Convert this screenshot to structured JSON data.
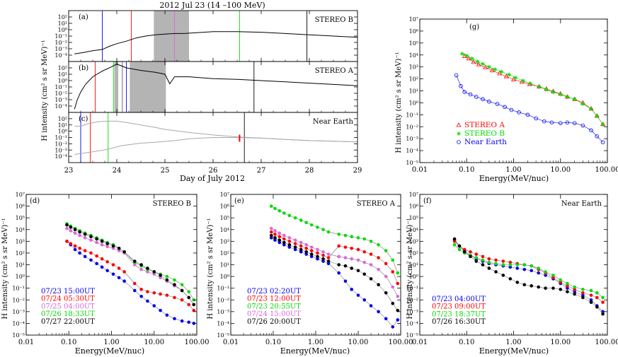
{
  "figure": {
    "title": "2012 Jul 23 (14 –100 MeV)"
  },
  "colors": {
    "black": "#000000",
    "red": "#ff0000",
    "green": "#00dd00",
    "blue": "#0000ee",
    "violet": "#dd66dd",
    "gray": "#a8a8a8",
    "shade": "#b4b4b4"
  },
  "time_axis": {
    "xlabel": "Day of July 2012",
    "ylabel": "H intensity (cm² s sr MeV)⁻¹",
    "xlim": [
      23,
      29
    ],
    "xticks": [
      "23",
      "24",
      "25",
      "26",
      "27",
      "28",
      "29"
    ],
    "ylim": [
      -5,
      3
    ],
    "yticks": [
      "10⁻⁴",
      "10⁻³",
      "10⁻²",
      "10⁻¹",
      "10⁰",
      "10¹",
      "10²"
    ]
  },
  "log_axis": {
    "xlabel": "Energy(MeV/nuc)",
    "ylabel": "H intensity (cm² s sr MeV)⁻¹",
    "xlim": [
      0.01,
      100
    ],
    "xticks": [
      "0.01",
      "0.10",
      "1.00",
      "10.00",
      "100.00"
    ],
    "ylim": [
      -5,
      7
    ],
    "yticks": [
      "10⁻⁵",
      "10⁻⁴",
      "10⁻³",
      "10⁻²",
      "10⁻¹",
      "10⁰",
      "10¹",
      "10²",
      "10³",
      "10⁴",
      "10⁵",
      "10⁶",
      "10⁷"
    ]
  },
  "chart_data": [
    {
      "id": "a",
      "type": "line",
      "label": "(a)",
      "name": "STEREO B",
      "shaded_days": [
        [
          24.77,
          25.5
        ]
      ],
      "vlines": [
        {
          "x": 23.7,
          "color": "blue"
        },
        {
          "x": 24.3,
          "color": "red"
        },
        {
          "x": 25.2,
          "color": "violet"
        },
        {
          "x": 26.55,
          "color": "green"
        },
        {
          "x": 27.95,
          "color": "black"
        }
      ],
      "series": [
        {
          "name": "STEREO B",
          "x": [
            23.12,
            23.3,
            23.5,
            23.7,
            23.85,
            24.0,
            24.2,
            24.4,
            24.6,
            24.8,
            25.0,
            25.2,
            25.4,
            25.6,
            26.0,
            26.5,
            27.0,
            27.5,
            28.0,
            28.5,
            29.0
          ],
          "log10_values": [
            -3.8,
            -3.6,
            -3.3,
            -3.1,
            -2.6,
            -2.2,
            -1.8,
            -1.3,
            -1.0,
            -0.8,
            -0.7,
            -0.6,
            -0.6,
            -0.5,
            -0.3,
            -0.3,
            -0.4,
            -0.6,
            -0.8,
            -1.0,
            -1.2
          ]
        }
      ]
    },
    {
      "id": "b",
      "type": "line",
      "label": "(b)",
      "name": "STEREO A",
      "shaded_days": [
        [
          23.95,
          24.03
        ],
        [
          24.1,
          24.13
        ],
        [
          24.27,
          25.02
        ]
      ],
      "vlines": [
        {
          "x": 23.55,
          "color": "red"
        },
        {
          "x": 23.93,
          "color": "green"
        },
        {
          "x": 24.2,
          "color": "blue"
        },
        {
          "x": 26.85,
          "color": "black"
        }
      ],
      "series": [
        {
          "name": "STEREO A",
          "x": [
            23.12,
            23.18,
            23.25,
            23.35,
            23.5,
            23.7,
            23.9,
            24.0,
            24.2,
            24.5,
            24.8,
            25.0,
            25.1,
            25.2,
            25.5,
            26.0,
            26.5,
            27.0,
            27.5,
            28.0,
            28.5,
            29.0
          ],
          "log10_values": [
            -4.5,
            -3.0,
            -1.8,
            -0.6,
            0.6,
            1.5,
            2.2,
            2.6,
            2.0,
            1.6,
            1.3,
            1.0,
            -0.5,
            0.6,
            0.6,
            0.3,
            0.2,
            0.0,
            -0.2,
            -0.4,
            -0.6,
            -0.8
          ]
        }
      ]
    },
    {
      "id": "c",
      "type": "line",
      "label": "(c)",
      "name": "Near Earth",
      "vlines": [
        {
          "x": 23.25,
          "color": "blue"
        },
        {
          "x": 23.45,
          "color": "red"
        },
        {
          "x": 23.82,
          "color": "green"
        },
        {
          "x": 26.65,
          "color": "black"
        }
      ],
      "markers": [
        {
          "x": 26.55,
          "color": "red"
        }
      ],
      "series": [
        {
          "name": "upper",
          "x": [
            23.12,
            23.25,
            23.4,
            23.6,
            23.8,
            24.0,
            24.2,
            24.5,
            24.8,
            25.0,
            25.5,
            26.0,
            26.5,
            27.0,
            27.5,
            28.0,
            28.5,
            29.0
          ],
          "log10_values": [
            0.8,
            0.8,
            1.2,
            1.5,
            1.6,
            1.6,
            1.4,
            1.0,
            0.6,
            0.3,
            -0.2,
            -0.6,
            -0.9,
            -1.1,
            -1.3,
            -1.5,
            -1.6,
            -1.7
          ]
        },
        {
          "name": "lower",
          "x": [
            23.12,
            23.4,
            23.8,
            24.1,
            24.5,
            24.9,
            25.2,
            25.5,
            26.0,
            26.5,
            27.0,
            27.5,
            28.0,
            28.5,
            29.0
          ],
          "log10_values": [
            -3.7,
            -3.4,
            -2.9,
            -2.3,
            -1.9,
            -1.7,
            -1.5,
            -1.2,
            -1.0,
            -1.0,
            -1.1,
            -1.3,
            -1.5,
            -1.6,
            -1.7
          ]
        }
      ]
    },
    {
      "id": "g",
      "type": "scatter",
      "label": "(g)",
      "series": [
        {
          "name": "STEREO A",
          "color": "red",
          "marker": "triangle",
          "x": [
            0.09,
            0.11,
            0.14,
            0.18,
            0.25,
            0.35,
            0.5,
            0.7,
            1.0,
            1.5,
            2.2,
            3.5,
            5,
            7,
            10,
            14,
            20,
            30,
            45,
            60,
            80
          ],
          "log10_values": [
            3.9,
            3.7,
            3.4,
            3.2,
            2.95,
            2.7,
            2.45,
            2.2,
            1.95,
            1.75,
            1.55,
            1.35,
            1.15,
            0.95,
            0.75,
            0.5,
            0.3,
            0.0,
            -0.5,
            -1.1,
            -1.8
          ]
        },
        {
          "name": "STEREO B",
          "color": "green",
          "marker": "star",
          "x": [
            0.08,
            0.1,
            0.13,
            0.17,
            0.22,
            0.3,
            0.4,
            0.55,
            0.8,
            1.1,
            1.6,
            2.3,
            3.5,
            5,
            7,
            10,
            14,
            20,
            30,
            45,
            60,
            80
          ],
          "log10_values": [
            4.1,
            3.95,
            3.7,
            3.45,
            3.25,
            3.0,
            2.8,
            2.6,
            2.35,
            2.1,
            1.85,
            1.6,
            1.35,
            1.1,
            0.9,
            0.7,
            0.5,
            0.3,
            -0.1,
            -0.5,
            -1.1,
            -1.8
          ]
        },
        {
          "name": "Near Earth",
          "color": "blue",
          "marker": "circle",
          "x": [
            0.06,
            0.075,
            0.09,
            0.12,
            0.16,
            0.22,
            0.3,
            0.45,
            0.65,
            0.9,
            1.3,
            2,
            3,
            4.5,
            6.5,
            10,
            14,
            20,
            30,
            45,
            60,
            80
          ],
          "log10_values": [
            2.3,
            1.4,
            0.9,
            0.7,
            0.5,
            0.3,
            0.1,
            -0.1,
            -0.35,
            -0.6,
            -0.8,
            -1.0,
            -1.3,
            -1.55,
            -1.65,
            -1.7,
            -1.65,
            -1.7,
            -1.9,
            -2.3,
            -2.8,
            -3.3
          ]
        }
      ]
    },
    {
      "id": "d",
      "type": "scatter",
      "label": "(d)",
      "name": "STEREO B",
      "x": [
        0.09,
        0.11,
        0.14,
        0.18,
        0.24,
        0.33,
        0.45,
        0.6,
        0.8,
        1.1,
        1.5,
        2.0,
        3.5,
        5,
        7,
        10,
        14,
        20,
        30,
        45,
        65,
        85
      ],
      "series": [
        {
          "name": "07/23  15:00UT",
          "color": "blue",
          "log10_values": [
            3.0,
            2.7,
            2.3,
            2.0,
            1.7,
            1.4,
            1.1,
            0.8,
            0.5,
            0.2,
            -0.1,
            -0.4,
            -1.2,
            -1.7,
            -2.1,
            -2.5,
            -2.9,
            -3.3,
            -3.6,
            -3.8,
            -3.9,
            -4.0
          ]
        },
        {
          "name": "07/24  05:30UT",
          "color": "red",
          "log10_values": [
            3.0,
            2.8,
            2.6,
            2.4,
            2.2,
            2.0,
            1.75,
            1.5,
            1.25,
            1.0,
            0.7,
            0.4,
            -0.6,
            -1.1,
            -1.3,
            -1.4,
            -1.5,
            -1.6,
            -1.8,
            -2.0,
            -2.4,
            -2.9
          ]
        },
        {
          "name": "07/25  04:00UT",
          "color": "violet",
          "log10_values": [
            4.1,
            3.9,
            3.7,
            3.5,
            3.3,
            3.1,
            2.9,
            2.7,
            2.55,
            2.4,
            2.2,
            2.0,
            1.0,
            0.6,
            0.4,
            0.2,
            -0.1,
            -0.4,
            -0.8,
            -1.2,
            -1.8,
            -2.4
          ]
        },
        {
          "name": "07/26  18:33UT",
          "color": "green",
          "log10_values": [
            4.5,
            4.3,
            4.1,
            3.9,
            3.7,
            3.5,
            3.3,
            3.1,
            2.9,
            2.7,
            2.4,
            2.1,
            1.2,
            0.9,
            0.6,
            0.4,
            0.2,
            0.0,
            -0.3,
            -0.7,
            -1.3,
            -2.0
          ]
        },
        {
          "name": "07/27  22:00UT",
          "color": "black",
          "log10_values": [
            4.4,
            4.2,
            4.0,
            3.8,
            3.6,
            3.4,
            3.2,
            3.0,
            2.8,
            2.6,
            2.4,
            2.1,
            1.3,
            1.0,
            0.7,
            0.4,
            0.1,
            -0.3,
            -0.7,
            -1.2,
            -1.8,
            -2.4
          ]
        }
      ]
    },
    {
      "id": "e",
      "type": "scatter",
      "label": "(e)",
      "name": "STEREO A",
      "x": [
        0.09,
        0.11,
        0.14,
        0.18,
        0.24,
        0.33,
        0.45,
        0.6,
        0.8,
        1.1,
        1.5,
        2.0,
        3.5,
        5,
        7,
        10,
        14,
        20,
        30,
        45,
        65,
        85
      ],
      "series": [
        {
          "name": "07/23  02:20UT",
          "color": "blue",
          "log10_values": [
            3.3,
            3.1,
            2.9,
            2.7,
            2.5,
            2.3,
            2.1,
            1.9,
            1.7,
            1.5,
            1.3,
            1.1,
            0.3,
            -0.4,
            -1.1,
            -1.6,
            -2.0,
            -2.5,
            -3.0,
            -3.6,
            -4.3,
            -3.7
          ]
        },
        {
          "name": "07/23  12:00UT",
          "color": "red",
          "log10_values": [
            3.8,
            3.6,
            3.4,
            3.2,
            3.0,
            2.8,
            2.6,
            2.4,
            2.2,
            2.0,
            1.8,
            1.6,
            2.6,
            2.5,
            2.4,
            2.3,
            2.1,
            1.9,
            1.6,
            1.1,
            0.4,
            -0.6
          ]
        },
        {
          "name": "07/23  20:55UT",
          "color": "green",
          "log10_values": [
            6.0,
            5.8,
            5.6,
            5.4,
            5.2,
            5.0,
            4.8,
            4.6,
            4.4,
            4.2,
            4.0,
            3.8,
            3.6,
            3.5,
            3.4,
            3.3,
            3.2,
            3.0,
            2.7,
            2.2,
            1.4,
            0.3
          ]
        },
        {
          "name": "07/24  15:00UT",
          "color": "violet",
          "log10_values": [
            4.1,
            3.9,
            3.7,
            3.5,
            3.3,
            3.1,
            2.9,
            2.7,
            2.5,
            2.3,
            2.1,
            1.9,
            1.7,
            1.6,
            1.5,
            1.4,
            1.2,
            1.0,
            0.6,
            0.0,
            -0.9,
            -1.7
          ]
        },
        {
          "name": "07/26  20:00UT",
          "color": "black",
          "log10_values": [
            3.5,
            3.3,
            3.1,
            2.9,
            2.7,
            2.5,
            2.3,
            2.1,
            1.9,
            1.7,
            1.5,
            1.3,
            1.0,
            0.9,
            0.7,
            0.5,
            0.2,
            -0.2,
            -0.7,
            -1.4,
            -2.3,
            -2.9
          ]
        }
      ]
    },
    {
      "id": "f",
      "type": "scatter",
      "label": "(f)",
      "name": "Near Earth",
      "x": [
        0.055,
        0.07,
        0.09,
        0.12,
        0.16,
        0.22,
        0.3,
        0.42,
        0.6,
        0.85,
        1.2,
        1.7,
        2.4,
        3.4,
        4.8,
        7,
        10,
        14,
        20,
        30,
        45,
        60,
        80
      ],
      "series": [
        {
          "name": "07/23  04:00UT",
          "color": "blue",
          "log10_values": [
            3.1,
            2.6,
            2.2,
            1.8,
            1.5,
            1.3,
            1.1,
            1.0,
            0.9,
            0.8,
            0.7,
            0.6,
            0.5,
            0.3,
            0.1,
            -0.2,
            -0.6,
            -1.0,
            -1.3,
            -1.6,
            -2.0,
            -2.5,
            -3.0
          ]
        },
        {
          "name": "07/23  09:00UT",
          "color": "red",
          "log10_values": [
            3.0,
            2.6,
            2.3,
            2.1,
            1.9,
            1.7,
            1.5,
            1.4,
            1.3,
            1.2,
            1.1,
            1.0,
            0.9,
            0.6,
            0.3,
            -0.1,
            -0.5,
            -0.8,
            -1.1,
            -1.4,
            -1.6,
            -1.8,
            -2.2
          ]
        },
        {
          "name": "07/23  18:37UT",
          "color": "green",
          "log10_values": [
            2.7,
            2.3,
            2.0,
            1.8,
            1.6,
            1.4,
            1.2,
            1.1,
            1.0,
            1.0,
            1.0,
            1.0,
            0.9,
            0.7,
            0.4,
            0.1,
            -0.3,
            -0.6,
            -0.9,
            -1.1,
            -1.2,
            -1.4,
            -1.8
          ]
        },
        {
          "name": "07/26  16:30UT",
          "color": "black",
          "log10_values": [
            3.2,
            2.6,
            2.1,
            1.7,
            1.3,
            1.0,
            0.7,
            0.4,
            0.1,
            -0.2,
            -0.5,
            -0.7,
            -0.8,
            -0.9,
            -1.0,
            -1.0,
            -1.1,
            -1.3,
            -1.5,
            -1.8,
            -2.2,
            -2.6,
            -3.2
          ]
        }
      ]
    }
  ]
}
